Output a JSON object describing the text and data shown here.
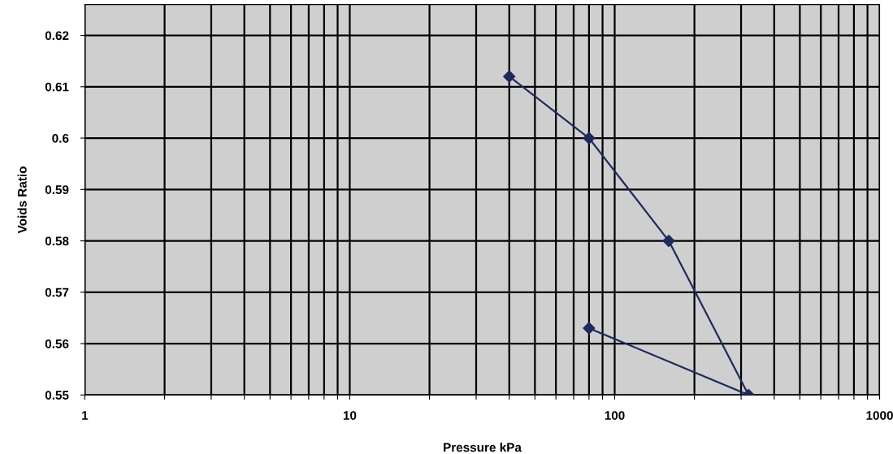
{
  "chart_data": {
    "type": "line",
    "xlabel": "Pressure kPa",
    "ylabel": "Voids Ratio",
    "x": [
      40,
      80,
      160,
      320,
      80
    ],
    "series": [
      {
        "color": "#1f2a5c",
        "values": [
          0.612,
          0.6,
          0.58,
          0.55,
          0.563
        ]
      }
    ],
    "log": "x",
    "xlim": [
      1,
      1000
    ],
    "xticks": [
      1,
      {
        "value": 2,
        "label": null
      },
      {
        "value": 3,
        "label": null
      },
      {
        "value": 4,
        "label": null
      },
      {
        "value": 5,
        "label": null
      },
      {
        "value": 6,
        "label": null
      },
      {
        "value": 7,
        "label": null
      },
      {
        "value": 8,
        "label": null
      },
      {
        "value": 9,
        "label": null
      },
      10,
      {
        "value": 20,
        "label": null
      },
      {
        "value": 30,
        "label": null
      },
      {
        "value": 40,
        "label": null
      },
      {
        "value": 50,
        "label": null
      },
      {
        "value": 60,
        "label": null
      },
      {
        "value": 70,
        "label": null
      },
      {
        "value": 80,
        "label": null
      },
      {
        "value": 90,
        "label": null
      },
      100,
      {
        "value": 200,
        "label": null
      },
      {
        "value": 300,
        "label": null
      },
      {
        "value": 400,
        "label": null
      },
      {
        "value": 500,
        "label": null
      },
      {
        "value": 600,
        "label": null
      },
      {
        "value": 700,
        "label": null
      },
      {
        "value": 800,
        "label": null
      },
      {
        "value": 900,
        "label": null
      },
      1000
    ],
    "ylim": [
      0.55,
      0.626
    ],
    "yticks": [
      0.55,
      0.56,
      0.57,
      0.58,
      0.59,
      0.6,
      0.61,
      0.62
    ],
    "grid": true,
    "marker": "diamond",
    "line_style": "solid",
    "legend": false
  }
}
